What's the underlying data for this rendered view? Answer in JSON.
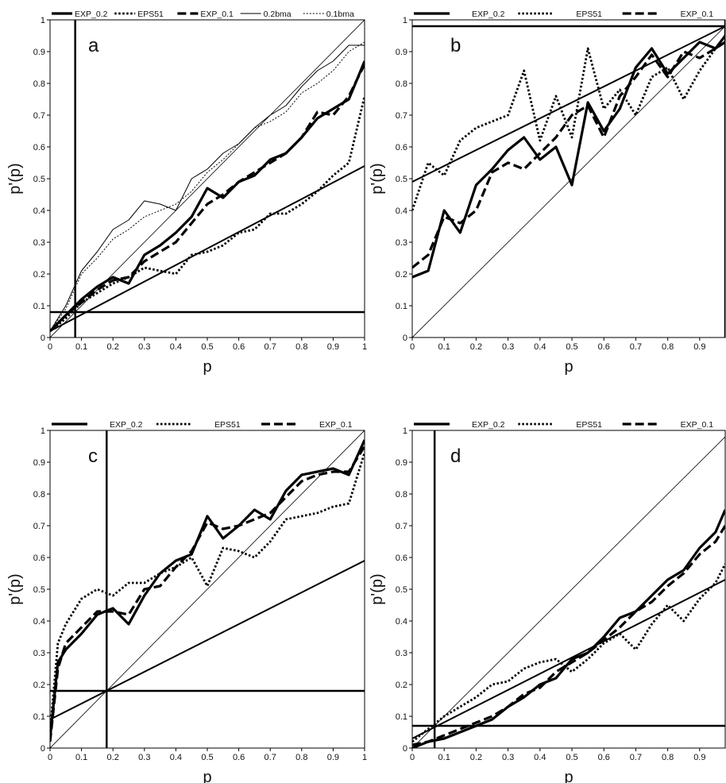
{
  "chart_data": [
    {
      "type": "line",
      "panel_label": "a",
      "xlabel": "p",
      "ylabel": "p'(p)",
      "xlim": [
        0,
        1
      ],
      "ylim": [
        0,
        1
      ],
      "x_ticks": [
        "0",
        "0.1",
        "0.2",
        "0.3",
        "0.4",
        "0.5",
        "0.6",
        "0.7",
        "0.8",
        "0.9",
        "1"
      ],
      "y_ticks": [
        "0",
        "0.1",
        "0.2",
        "0.3",
        "0.4",
        "0.5",
        "0.6",
        "0.7",
        "0.8",
        "0.9",
        "1"
      ],
      "legend": [
        "EXP_0.2",
        "EPS51",
        "EXP_0.1",
        "0.2bma",
        "0.1bma"
      ],
      "legend_position": "top",
      "reference_lines": {
        "vertical_x": 0.08,
        "horizontal_y": 0.08,
        "diagonal": true,
        "fit_line": [
          [
            0,
            0.02
          ],
          [
            1,
            0.54
          ]
        ]
      },
      "x": [
        0,
        0.05,
        0.1,
        0.15,
        0.2,
        0.25,
        0.3,
        0.35,
        0.4,
        0.45,
        0.5,
        0.55,
        0.6,
        0.65,
        0.7,
        0.75,
        0.8,
        0.85,
        0.9,
        0.95,
        1
      ],
      "series": [
        {
          "name": "EXP_0.2",
          "style": "thick-solid",
          "values": [
            0.02,
            0.07,
            0.12,
            0.16,
            0.19,
            0.17,
            0.26,
            0.29,
            0.33,
            0.38,
            0.47,
            0.44,
            0.49,
            0.51,
            0.56,
            0.58,
            0.63,
            0.69,
            0.72,
            0.75,
            0.87
          ]
        },
        {
          "name": "EPS51",
          "style": "dotted",
          "values": [
            0.02,
            0.06,
            0.11,
            0.14,
            0.17,
            0.19,
            0.22,
            0.21,
            0.2,
            0.26,
            0.27,
            0.29,
            0.33,
            0.34,
            0.39,
            0.39,
            0.42,
            0.46,
            0.51,
            0.55,
            0.76
          ]
        },
        {
          "name": "EXP_0.1",
          "style": "dashed",
          "values": [
            0.02,
            0.07,
            0.11,
            0.15,
            0.18,
            0.19,
            0.24,
            0.27,
            0.3,
            0.36,
            0.42,
            0.45,
            0.49,
            0.52,
            0.55,
            0.58,
            0.63,
            0.71,
            0.7,
            0.76,
            0.86
          ]
        },
        {
          "name": "0.2bma",
          "style": "thin-solid",
          "values": [
            0.02,
            0.1,
            0.21,
            0.27,
            0.34,
            0.37,
            0.43,
            0.42,
            0.4,
            0.5,
            0.53,
            0.58,
            0.61,
            0.66,
            0.7,
            0.73,
            0.79,
            0.84,
            0.87,
            0.92,
            0.92
          ]
        },
        {
          "name": "0.1bma",
          "style": "thin-dotted",
          "values": [
            0.02,
            0.09,
            0.2,
            0.25,
            0.31,
            0.34,
            0.38,
            0.4,
            0.42,
            0.46,
            0.52,
            0.56,
            0.61,
            0.66,
            0.68,
            0.71,
            0.77,
            0.8,
            0.84,
            0.9,
            0.93
          ]
        }
      ]
    },
    {
      "type": "line",
      "panel_label": "b",
      "xlabel": "p",
      "ylabel": "p'(p)",
      "xlim": [
        0,
        0.98
      ],
      "ylim": [
        0,
        1
      ],
      "x_ticks": [
        "0",
        "0.1",
        "0.2",
        "0.3",
        "0.4",
        "0.5",
        "0.6",
        "0.7",
        "0.8",
        "0.9"
      ],
      "y_ticks": [
        "0",
        "0.1",
        "0.2",
        "0.3",
        "0.4",
        "0.5",
        "0.6",
        "0.7",
        "0.8",
        "0.9",
        "1"
      ],
      "legend": [
        "EXP_0.2",
        "EPS51",
        "EXP_0.1"
      ],
      "legend_position": "top",
      "reference_lines": {
        "vertical_x": 0.98,
        "horizontal_y": 0.98,
        "diagonal": true,
        "fit_line": [
          [
            0,
            0.49
          ],
          [
            0.98,
            0.98
          ]
        ]
      },
      "x": [
        0,
        0.05,
        0.1,
        0.15,
        0.2,
        0.25,
        0.3,
        0.35,
        0.4,
        0.45,
        0.5,
        0.55,
        0.6,
        0.65,
        0.7,
        0.75,
        0.8,
        0.85,
        0.9,
        0.95,
        0.98
      ],
      "series": [
        {
          "name": "EXP_0.2",
          "style": "thick-solid",
          "values": [
            0.19,
            0.21,
            0.4,
            0.33,
            0.48,
            0.53,
            0.59,
            0.63,
            0.56,
            0.6,
            0.48,
            0.74,
            0.65,
            0.72,
            0.85,
            0.91,
            0.83,
            0.88,
            0.93,
            0.91,
            0.95
          ]
        },
        {
          "name": "EPS51",
          "style": "dotted",
          "values": [
            0.4,
            0.55,
            0.51,
            0.62,
            0.66,
            0.68,
            0.7,
            0.84,
            0.62,
            0.76,
            0.63,
            0.91,
            0.72,
            0.78,
            0.7,
            0.82,
            0.85,
            0.75,
            0.84,
            0.91,
            0.93
          ]
        },
        {
          "name": "EXP_0.1",
          "style": "dashed",
          "values": [
            0.22,
            0.26,
            0.38,
            0.36,
            0.4,
            0.52,
            0.55,
            0.53,
            0.58,
            0.63,
            0.7,
            0.73,
            0.63,
            0.76,
            0.82,
            0.89,
            0.82,
            0.9,
            0.88,
            0.91,
            0.93
          ]
        }
      ]
    },
    {
      "type": "line",
      "panel_label": "c",
      "xlabel": "p",
      "ylabel": "p'(p)",
      "xlim": [
        0,
        1
      ],
      "ylim": [
        0,
        1
      ],
      "x_ticks": [
        "0",
        "0.1",
        "0.2",
        "0.3",
        "0.4",
        "0.5",
        "0.6",
        "0.7",
        "0.8",
        "0.9",
        "1"
      ],
      "y_ticks": [
        "0",
        "0.1",
        "0.2",
        "0.3",
        "0.4",
        "0.5",
        "0.6",
        "0.7",
        "0.8",
        "0.9",
        "1"
      ],
      "legend": [
        "EXP_0.2",
        "EPS51",
        "EXP_0.1"
      ],
      "legend_position": "top",
      "reference_lines": {
        "vertical_x": 0.18,
        "horizontal_y": 0.18,
        "diagonal": true,
        "fit_line": [
          [
            0,
            0.09
          ],
          [
            1,
            0.59
          ]
        ]
      },
      "x": [
        0,
        0.025,
        0.05,
        0.1,
        0.15,
        0.2,
        0.25,
        0.3,
        0.35,
        0.4,
        0.45,
        0.5,
        0.55,
        0.6,
        0.65,
        0.7,
        0.75,
        0.8,
        0.85,
        0.9,
        0.95,
        1
      ],
      "series": [
        {
          "name": "EXP_0.2",
          "style": "thick-solid",
          "values": [
            0.03,
            0.27,
            0.31,
            0.36,
            0.42,
            0.44,
            0.39,
            0.48,
            0.55,
            0.59,
            0.61,
            0.73,
            0.66,
            0.7,
            0.75,
            0.72,
            0.81,
            0.86,
            0.87,
            0.88,
            0.86,
            0.97
          ]
        },
        {
          "name": "EPS51",
          "style": "dotted",
          "values": [
            0.05,
            0.33,
            0.39,
            0.47,
            0.5,
            0.48,
            0.52,
            0.52,
            0.55,
            0.57,
            0.6,
            0.51,
            0.63,
            0.62,
            0.6,
            0.65,
            0.72,
            0.73,
            0.74,
            0.76,
            0.77,
            0.93
          ]
        },
        {
          "name": "EXP_0.1",
          "style": "dashed",
          "values": [
            0.02,
            0.25,
            0.33,
            0.38,
            0.43,
            0.43,
            0.42,
            0.5,
            0.51,
            0.57,
            0.62,
            0.71,
            0.69,
            0.7,
            0.72,
            0.74,
            0.79,
            0.84,
            0.86,
            0.87,
            0.87,
            0.95
          ]
        }
      ]
    },
    {
      "type": "line",
      "panel_label": "d",
      "xlabel": "p",
      "ylabel": "p'(p)",
      "xlim": [
        0,
        0.98
      ],
      "ylim": [
        0,
        1
      ],
      "x_ticks": [
        "0",
        "0.1",
        "0.2",
        "0.3",
        "0.4",
        "0.5",
        "0.6",
        "0.7",
        "0.8",
        "0.9"
      ],
      "y_ticks": [
        "0",
        "0.1",
        "0.2",
        "0.3",
        "0.4",
        "0.5",
        "0.6",
        "0.7",
        "0.8",
        "0.9",
        "1"
      ],
      "legend": [
        "EXP_0.2",
        "EPS51",
        "EXP_0.1"
      ],
      "legend_position": "top",
      "reference_lines": {
        "vertical_x": 0.07,
        "horizontal_y": 0.07,
        "diagonal": true,
        "fit_line": [
          [
            0,
            0.03
          ],
          [
            0.98,
            0.53
          ]
        ]
      },
      "x": [
        0,
        0.05,
        0.1,
        0.15,
        0.2,
        0.25,
        0.3,
        0.35,
        0.4,
        0.45,
        0.5,
        0.55,
        0.6,
        0.65,
        0.7,
        0.75,
        0.8,
        0.85,
        0.9,
        0.95,
        0.98
      ],
      "series": [
        {
          "name": "EXP_0.2",
          "style": "thick-solid",
          "values": [
            0.0,
            0.02,
            0.03,
            0.05,
            0.07,
            0.09,
            0.13,
            0.16,
            0.2,
            0.22,
            0.28,
            0.3,
            0.35,
            0.41,
            0.43,
            0.48,
            0.53,
            0.56,
            0.63,
            0.68,
            0.75
          ]
        },
        {
          "name": "EPS51",
          "style": "dotted",
          "values": [
            0.02,
            0.06,
            0.1,
            0.13,
            0.16,
            0.2,
            0.21,
            0.25,
            0.27,
            0.28,
            0.24,
            0.28,
            0.33,
            0.36,
            0.31,
            0.39,
            0.45,
            0.4,
            0.47,
            0.52,
            0.58
          ]
        },
        {
          "name": "EXP_0.1",
          "style": "dashed",
          "values": [
            0.01,
            0.02,
            0.04,
            0.06,
            0.08,
            0.1,
            0.13,
            0.17,
            0.19,
            0.24,
            0.27,
            0.3,
            0.34,
            0.38,
            0.43,
            0.46,
            0.51,
            0.55,
            0.61,
            0.65,
            0.7
          ]
        }
      ]
    }
  ]
}
